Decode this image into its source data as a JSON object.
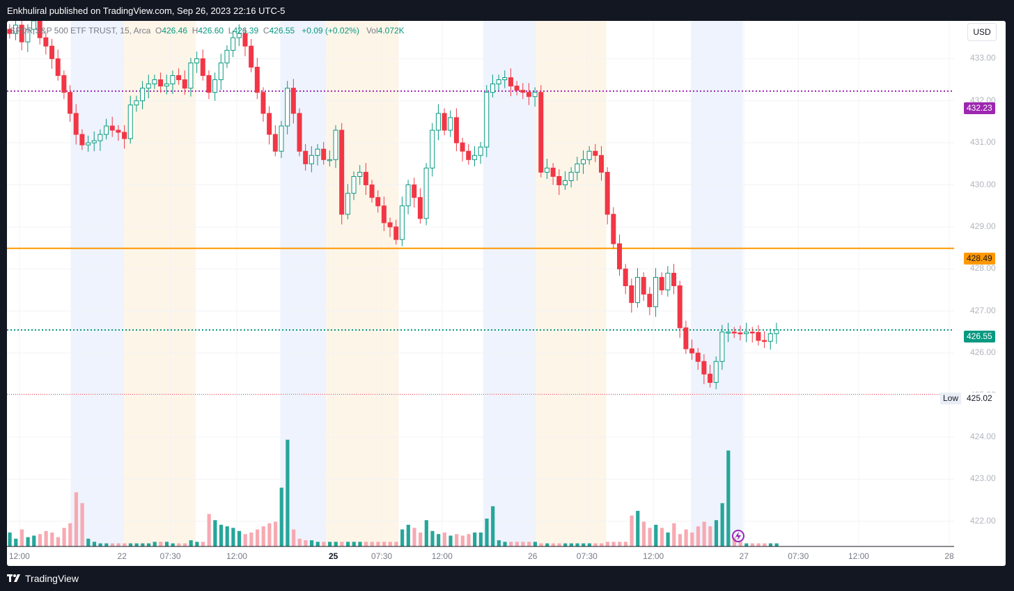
{
  "publisher": "Enkhuliral published on TradingView.com, Sep 26, 2023 22:16 UTC-5",
  "brand": "TradingView",
  "legend": {
    "symbol": "SPDR S&P 500 ETF TRUST, 15, Arca",
    "o_key": "O",
    "o_val": "426.46",
    "h_key": "H",
    "h_val": "426.60",
    "l_key": "L",
    "l_val": "426.39",
    "c_key": "C",
    "c_val": "426.55",
    "change": "+0.09 (+0.02%)",
    "vol_key": "Vol",
    "vol_val": "4.072K"
  },
  "currency": "USD",
  "colors": {
    "up": "#089981",
    "down": "#f23645",
    "vol_up": "#26a69a",
    "vol_down": "#f7a9b1",
    "premarket": "#eef3fd",
    "postmarket": "#fdf5e8",
    "purple_line": "#9c27b0",
    "orange_line": "#ff9800",
    "green_line": "#089981",
    "low_line": "#f23645"
  },
  "price_tags": {
    "purple": "432.23",
    "orange": "428.49",
    "green": "426.55",
    "low_label": "Low",
    "low_value": "425.02"
  },
  "chart_data": {
    "type": "candlestick",
    "symbol": "SPDR S&P 500 ETF TRUST",
    "interval": "15",
    "exchange": "Arca",
    "ylim": [
      421.4,
      433.9
    ],
    "y_ticks": [
      "433.00",
      "432.00",
      "431.00",
      "430.00",
      "429.00",
      "428.00",
      "427.00",
      "426.00",
      "425.00",
      "424.00",
      "423.00",
      "422.00"
    ],
    "x_ticks": [
      {
        "label": "12:00",
        "bar": 2
      },
      {
        "label": "22",
        "bar": 19
      },
      {
        "label": "07:30",
        "bar": 27
      },
      {
        "label": "12:00",
        "bar": 38
      },
      {
        "label": "25",
        "bar": 54,
        "bold": true
      },
      {
        "label": "07:30",
        "bar": 62
      },
      {
        "label": "12:00",
        "bar": 72
      },
      {
        "label": "26",
        "bar": 87
      },
      {
        "label": "07:30",
        "bar": 96
      },
      {
        "label": "12:00",
        "bar": 107
      },
      {
        "label": "27",
        "bar": 122
      },
      {
        "label": "07:30",
        "bar": 131
      },
      {
        "label": "12:00",
        "bar": 141
      },
      {
        "label": "28",
        "bar": 156
      }
    ],
    "sessions": [
      {
        "type": "pre",
        "from": 10.5,
        "to": 19.3
      },
      {
        "type": "post",
        "from": 19.3,
        "to": 31.2
      },
      {
        "type": "pre",
        "from": 45.2,
        "to": 52.8
      },
      {
        "type": "post",
        "from": 52.8,
        "to": 64.8
      },
      {
        "type": "pre",
        "from": 78.8,
        "to": 87.5
      },
      {
        "type": "post",
        "from": 87.5,
        "to": 99.2
      },
      {
        "type": "pre",
        "from": 113.2,
        "to": 121.8
      }
    ],
    "horizontal_lines": [
      {
        "price": 432.23,
        "style": "dotted",
        "color": "purple"
      },
      {
        "price": 428.49,
        "style": "solid",
        "color": "orange"
      },
      {
        "price": 426.55,
        "style": "dotted",
        "color": "green"
      },
      {
        "price": 425.02,
        "style": "dotted-thin",
        "color": "red"
      }
    ],
    "closes": [
      433.6,
      433.8,
      433.4,
      433.7,
      433.9,
      433.5,
      433.3,
      433.0,
      432.6,
      432.2,
      431.7,
      431.2,
      430.95,
      431.0,
      431.05,
      431.2,
      431.4,
      431.3,
      431.25,
      431.1,
      431.9,
      432.0,
      432.3,
      432.4,
      432.5,
      432.35,
      432.4,
      432.6,
      432.5,
      432.3,
      432.9,
      433.0,
      432.6,
      432.2,
      432.5,
      432.9,
      433.2,
      433.5,
      433.6,
      433.3,
      432.8,
      432.2,
      431.7,
      431.2,
      430.8,
      431.4,
      432.3,
      431.7,
      430.8,
      430.5,
      430.7,
      430.85,
      430.6,
      430.6,
      431.3,
      429.3,
      429.8,
      430.2,
      430.3,
      430.0,
      429.7,
      429.5,
      429.1,
      429.0,
      428.7,
      429.5,
      430.0,
      429.7,
      429.2,
      430.4,
      431.3,
      431.7,
      431.3,
      431.6,
      431.0,
      430.8,
      430.6,
      430.7,
      430.9,
      432.2,
      432.4,
      432.5,
      432.55,
      432.35,
      432.25,
      432.2,
      432.1,
      432.2,
      430.3,
      430.4,
      430.2,
      430.0,
      430.1,
      430.3,
      430.5,
      430.6,
      430.8,
      430.7,
      430.3,
      429.3,
      428.6,
      428.0,
      427.6,
      427.2,
      427.8,
      427.4,
      427.1,
      427.8,
      427.5,
      427.9,
      427.6,
      426.6,
      426.1,
      426.0,
      425.8,
      425.5,
      425.3,
      425.8,
      426.5,
      426.5,
      426.48,
      426.46,
      426.5,
      426.49,
      426.3,
      426.28,
      426.46,
      426.55
    ],
    "volumes": [
      0.9,
      0.5,
      1.1,
      0.6,
      0.7,
      0.8,
      1.0,
      0.9,
      0.6,
      1.2,
      1.5,
      3.5,
      2.8,
      0.5,
      0.3,
      0.2,
      0.2,
      0.2,
      0.2,
      0.2,
      0.2,
      0.2,
      0.2,
      0.2,
      0.3,
      0.3,
      0.3,
      0.2,
      0.2,
      0.2,
      0.4,
      0.3,
      0.3,
      2.1,
      1.7,
      1.4,
      1.3,
      1.2,
      1.0,
      0.8,
      0.9,
      1.1,
      1.3,
      1.5,
      1.6,
      3.8,
      6.9,
      1.1,
      0.5,
      0.4,
      0.4,
      0.3,
      0.3,
      0.3,
      0.3,
      0.3,
      0.3,
      0.3,
      0.3,
      0.3,
      0.3,
      0.3,
      0.3,
      0.3,
      0.3,
      1.1,
      1.4,
      1.2,
      0.9,
      1.7,
      1.0,
      0.8,
      0.9,
      0.7,
      0.8,
      0.7,
      0.8,
      0.9,
      0.9,
      1.8,
      2.6,
      0.4,
      0.3,
      0.3,
      0.3,
      0.3,
      0.3,
      0.3,
      0.2,
      0.2,
      0.2,
      0.2,
      0.2,
      0.2,
      0.2,
      0.2,
      0.2,
      0.2,
      0.2,
      0.3,
      0.3,
      0.3,
      0.3,
      2.0,
      2.3,
      1.6,
      1.2,
      1.4,
      1.2,
      0.9,
      1.5,
      0.8,
      1.1,
      0.9,
      1.3,
      1.6,
      1.3,
      1.7,
      2.8,
      6.2,
      0.6,
      0.3,
      0.2,
      0.2,
      0.2,
      0.2,
      0.2,
      0.2
    ]
  }
}
